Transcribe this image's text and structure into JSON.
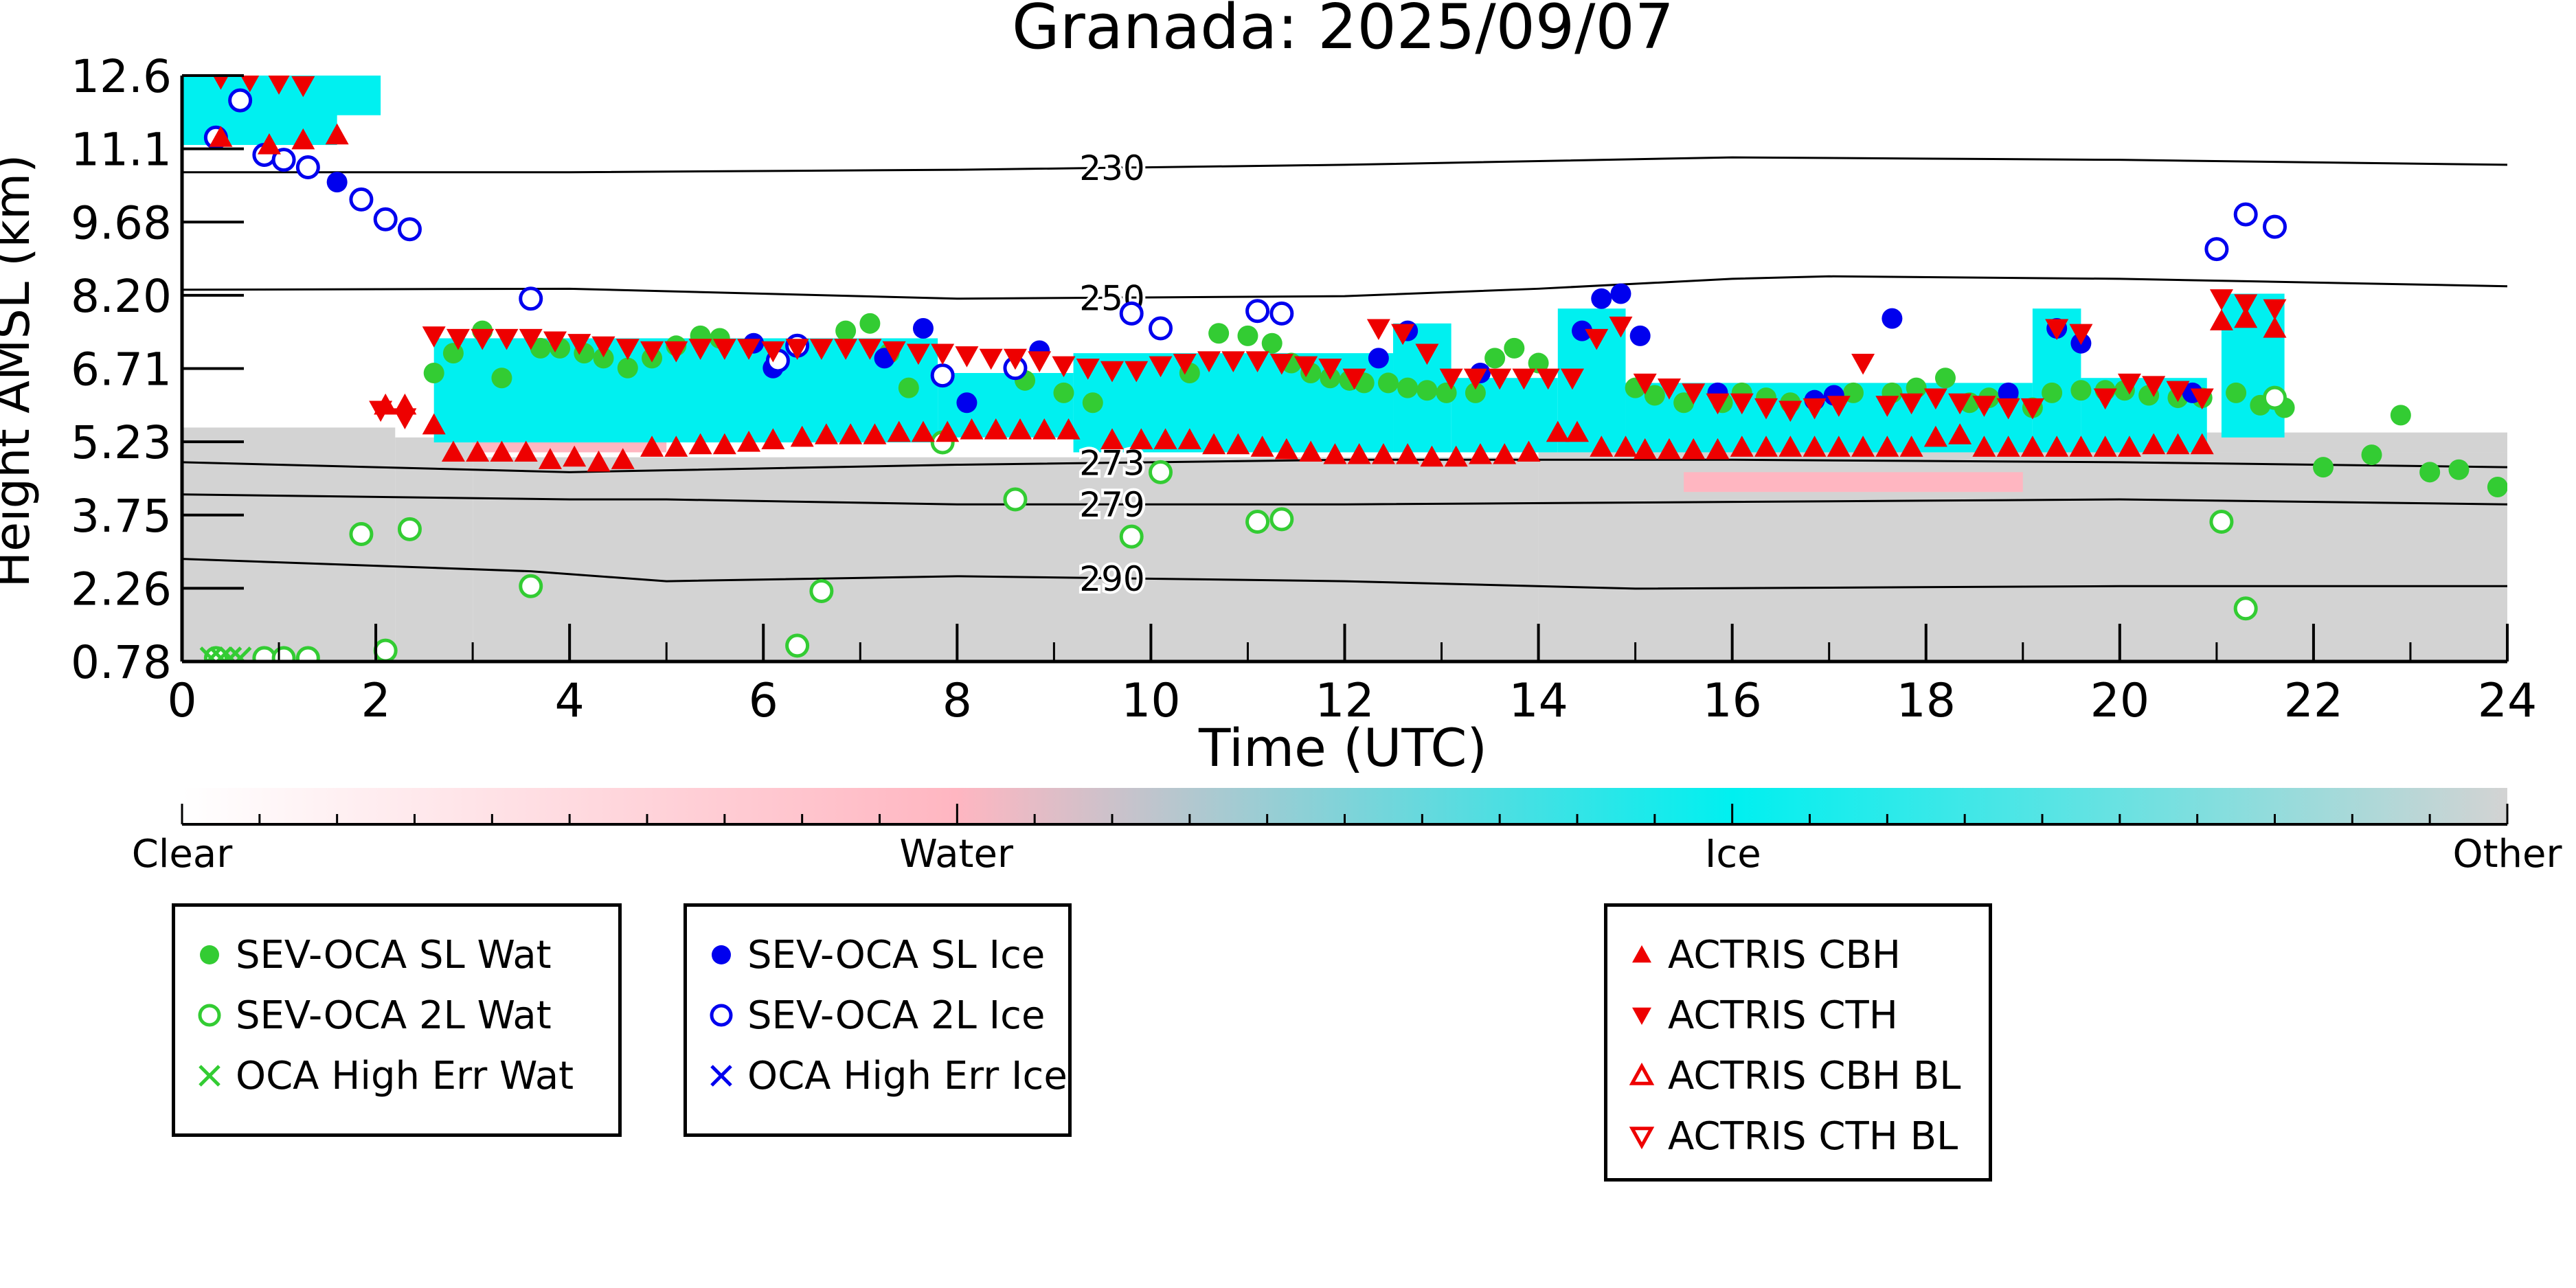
{
  "chart_data": {
    "type": "scatter",
    "title": "Granada: 2025/09/07",
    "xlabel": "Time (UTC)",
    "ylabel": "Height AMSL (km)",
    "xlim": [
      0,
      24
    ],
    "ylim": [
      0.78,
      12.6
    ],
    "xticks": [
      "0",
      "2",
      "4",
      "6",
      "8",
      "10",
      "12",
      "14",
      "16",
      "18",
      "20",
      "22",
      "24"
    ],
    "yticks": [
      "0.78",
      "2.26",
      "3.75",
      "5.23",
      "6.71",
      "8.20",
      "9.68",
      "11.1",
      "12.6"
    ],
    "isotherms": [
      {
        "label": "230",
        "x": [
          0,
          4,
          8,
          12,
          16,
          20,
          24
        ],
        "y": [
          10.65,
          10.65,
          10.7,
          10.8,
          10.95,
          10.9,
          10.8
        ]
      },
      {
        "label": "250",
        "x": [
          0,
          4,
          8,
          12,
          14,
          16,
          17,
          20,
          24
        ],
        "y": [
          8.28,
          8.3,
          8.1,
          8.15,
          8.3,
          8.5,
          8.55,
          8.5,
          8.35
        ]
      },
      {
        "label": "273",
        "x": [
          0,
          4,
          8,
          12,
          16,
          20,
          24
        ],
        "y": [
          4.8,
          4.6,
          4.75,
          4.85,
          4.85,
          4.8,
          4.7
        ]
      },
      {
        "label": "279",
        "x": [
          0,
          4,
          5,
          8,
          12,
          16,
          20,
          24
        ],
        "y": [
          4.15,
          4.05,
          4.05,
          3.95,
          3.95,
          4.0,
          4.05,
          3.95
        ]
      },
      {
        "label": "290",
        "x": [
          0,
          3.6,
          5,
          8,
          12,
          15,
          20,
          24
        ],
        "y": [
          2.85,
          2.6,
          2.4,
          2.5,
          2.4,
          2.25,
          2.3,
          2.3
        ]
      }
    ],
    "series": [
      {
        "name": "SEV-OCA SL Wat",
        "x": [
          2.6,
          2.8,
          3.1,
          3.3,
          3.7,
          3.9,
          4.15,
          4.35,
          4.6,
          4.85,
          5.1,
          5.35,
          5.55,
          6.85,
          7.1,
          7.3,
          7.5,
          8.7,
          9.1,
          9.4,
          10.4,
          10.7,
          11.0,
          11.25,
          11.45,
          11.65,
          11.85,
          12.05,
          12.2,
          12.45,
          12.65,
          12.85,
          13.05,
          13.35,
          13.55,
          13.75,
          14.0,
          15.0,
          15.2,
          15.5,
          15.9,
          16.1,
          16.35,
          16.6,
          17.25,
          17.65,
          17.9,
          18.2,
          18.45,
          18.65,
          18.85,
          19.1,
          19.3,
          19.6,
          19.85,
          20.05,
          20.3,
          20.6,
          20.85,
          21.2,
          21.45,
          21.7,
          22.1,
          22.6,
          22.9,
          23.2,
          23.5,
          23.9
        ],
        "y": [
          6.6,
          7.0,
          7.45,
          6.5,
          7.1,
          7.1,
          7.0,
          6.9,
          6.7,
          6.9,
          7.15,
          7.35,
          7.3,
          7.45,
          7.6,
          7.0,
          6.3,
          6.45,
          6.2,
          6.0,
          6.6,
          7.4,
          7.35,
          7.2,
          6.8,
          6.6,
          6.5,
          6.45,
          6.4,
          6.4,
          6.3,
          6.25,
          6.2,
          6.2,
          6.9,
          7.1,
          6.8,
          6.3,
          6.15,
          6.0,
          6.0,
          6.2,
          6.1,
          6.0,
          6.2,
          6.2,
          6.3,
          6.5,
          6.0,
          6.1,
          6.1,
          5.9,
          6.2,
          6.25,
          6.25,
          6.25,
          6.15,
          6.1,
          6.1,
          6.2,
          5.95,
          5.9,
          4.7,
          4.95,
          5.75,
          4.6,
          4.65,
          4.3
        ]
      },
      {
        "name": "SEV-OCA 2L Wat",
        "x": [
          0.35,
          0.85,
          1.05,
          1.3,
          1.85,
          2.1,
          2.35,
          3.6,
          6.35,
          6.6,
          7.85,
          8.6,
          9.8,
          10.1,
          11.1,
          11.35,
          21.05,
          21.3,
          21.6
        ],
        "y": [
          0.85,
          0.85,
          0.85,
          0.85,
          3.35,
          1.0,
          3.45,
          2.3,
          1.1,
          2.2,
          5.2,
          4.05,
          3.3,
          4.6,
          3.6,
          3.65,
          3.6,
          1.85,
          6.1
        ]
      },
      {
        "name": "OCA High Err Wat",
        "x": [
          0.3,
          0.4,
          0.5,
          0.6
        ],
        "y": [
          0.85,
          0.85,
          0.85,
          0.85
        ]
      },
      {
        "name": "SEV-OCA SL Ice",
        "x": [
          1.6,
          5.9,
          6.1,
          7.25,
          7.65,
          8.1,
          8.85,
          12.35,
          12.65,
          13.4,
          14.45,
          14.65,
          14.85,
          15.05,
          15.85,
          16.85,
          17.05,
          17.65,
          18.85,
          19.35,
          19.6,
          20.75
        ],
        "y": [
          10.45,
          7.2,
          6.7,
          6.9,
          7.5,
          6.0,
          7.05,
          6.9,
          7.45,
          6.6,
          7.45,
          8.1,
          8.2,
          7.35,
          6.2,
          6.05,
          6.15,
          7.7,
          6.2,
          7.5,
          7.2,
          6.2
        ]
      },
      {
        "name": "SEV-OCA 2L Ice",
        "x": [
          0.35,
          0.6,
          0.85,
          1.05,
          1.3,
          1.85,
          2.1,
          2.35,
          3.6,
          6.15,
          6.35,
          7.85,
          8.6,
          9.8,
          10.1,
          11.1,
          11.35,
          21.0,
          21.3,
          21.6
        ],
        "y": [
          11.35,
          12.1,
          11.0,
          10.9,
          10.75,
          10.1,
          9.7,
          9.5,
          8.1,
          6.85,
          7.15,
          6.55,
          6.7,
          7.8,
          7.5,
          7.85,
          7.8,
          9.1,
          9.8,
          9.55
        ]
      },
      {
        "name": "OCA High Err Ice",
        "x": [],
        "y": []
      },
      {
        "name": "ACTRIS CBH",
        "x": [
          0.4,
          0.9,
          1.25,
          1.6,
          2.1,
          2.3,
          2.6,
          2.8,
          3.05,
          3.3,
          3.55,
          3.8,
          4.05,
          4.3,
          4.55,
          4.85,
          5.1,
          5.35,
          5.6,
          5.85,
          6.1,
          6.4,
          6.65,
          6.9,
          7.15,
          7.4,
          7.65,
          7.9,
          8.15,
          8.4,
          8.65,
          8.9,
          9.15,
          9.6,
          9.9,
          10.15,
          10.4,
          10.65,
          10.9,
          11.15,
          11.4,
          11.65,
          11.9,
          12.15,
          12.4,
          12.65,
          12.9,
          13.15,
          13.4,
          13.65,
          13.9,
          14.2,
          14.4,
          14.65,
          14.9,
          15.1,
          15.35,
          15.6,
          15.85,
          16.1,
          16.35,
          16.6,
          16.85,
          17.1,
          17.35,
          17.6,
          17.85,
          18.1,
          18.35,
          18.6,
          18.85,
          19.1,
          19.35,
          19.6,
          19.85,
          20.1,
          20.35,
          20.6,
          20.85,
          21.05,
          21.3,
          21.6
        ],
        "y": [
          11.35,
          11.2,
          11.3,
          11.4,
          5.95,
          5.95,
          5.55,
          5.0,
          5.0,
          5.0,
          5.0,
          4.85,
          4.9,
          4.8,
          4.85,
          5.1,
          5.1,
          5.15,
          5.15,
          5.2,
          5.25,
          5.3,
          5.35,
          5.35,
          5.35,
          5.4,
          5.4,
          5.4,
          5.45,
          5.45,
          5.45,
          5.45,
          5.45,
          5.25,
          5.25,
          5.25,
          5.25,
          5.15,
          5.15,
          5.1,
          5.05,
          5.0,
          4.95,
          4.95,
          4.95,
          4.95,
          4.9,
          4.9,
          4.95,
          4.95,
          5.0,
          5.4,
          5.4,
          5.1,
          5.1,
          5.05,
          5.05,
          5.05,
          5.05,
          5.1,
          5.1,
          5.1,
          5.1,
          5.1,
          5.1,
          5.1,
          5.1,
          5.3,
          5.35,
          5.1,
          5.1,
          5.1,
          5.1,
          5.1,
          5.1,
          5.1,
          5.15,
          5.15,
          5.15,
          7.65,
          7.7,
          7.5
        ]
      },
      {
        "name": "ACTRIS CTH",
        "x": [
          0.4,
          0.7,
          1.0,
          1.25,
          2.05,
          2.3,
          2.6,
          2.85,
          3.1,
          3.35,
          3.6,
          3.85,
          4.1,
          4.35,
          4.6,
          4.85,
          5.1,
          5.35,
          5.6,
          5.85,
          6.1,
          6.35,
          6.6,
          6.85,
          7.1,
          7.35,
          7.6,
          7.85,
          8.1,
          8.35,
          8.6,
          8.85,
          9.1,
          9.35,
          9.6,
          9.85,
          10.1,
          10.35,
          10.6,
          10.85,
          11.1,
          11.35,
          11.6,
          11.85,
          12.1,
          12.35,
          12.6,
          12.85,
          13.1,
          13.35,
          13.6,
          13.85,
          14.1,
          14.35,
          14.6,
          14.85,
          15.1,
          15.35,
          15.6,
          15.85,
          16.1,
          16.35,
          16.6,
          16.85,
          17.1,
          17.35,
          17.6,
          17.85,
          18.1,
          18.35,
          18.6,
          18.85,
          19.1,
          19.35,
          19.6,
          19.85,
          20.1,
          20.35,
          20.6,
          20.85,
          21.05,
          21.3,
          21.6
        ],
        "y": [
          12.55,
          12.5,
          12.45,
          12.4,
          5.85,
          5.7,
          7.35,
          7.3,
          7.3,
          7.3,
          7.3,
          7.25,
          7.2,
          7.15,
          7.1,
          7.05,
          7.05,
          7.1,
          7.1,
          7.1,
          7.05,
          7.1,
          7.1,
          7.1,
          7.1,
          7.05,
          7.0,
          7.0,
          6.95,
          6.9,
          6.9,
          6.85,
          6.75,
          6.7,
          6.65,
          6.65,
          6.75,
          6.8,
          6.85,
          6.85,
          6.85,
          6.8,
          6.75,
          6.7,
          6.5,
          7.5,
          7.4,
          7.0,
          6.5,
          6.5,
          6.5,
          6.5,
          6.5,
          6.5,
          7.3,
          7.55,
          6.4,
          6.3,
          6.2,
          6.0,
          6.0,
          5.9,
          5.85,
          5.9,
          5.95,
          6.8,
          5.95,
          6.0,
          6.1,
          6.0,
          5.95,
          5.9,
          5.9,
          7.5,
          7.4,
          6.1,
          6.4,
          6.35,
          6.25,
          6.1,
          8.1,
          8.0,
          7.9
        ]
      },
      {
        "name": "ACTRIS CBH BL",
        "x": [],
        "y": []
      },
      {
        "name": "ACTRIS CTH BL",
        "x": [],
        "y": []
      }
    ],
    "colorbar": {
      "labels": [
        "Clear",
        "Water",
        "Ice",
        "Other"
      ],
      "positions": [
        0,
        0.333,
        0.667,
        1
      ]
    },
    "legend_placement": "bottom"
  },
  "colors": {
    "water": "#33cc33",
    "ice": "#0000ee",
    "actris": "#ee0000",
    "ice_cloud": "#00f0f0",
    "water_cloud": "#ffb6c1",
    "other": "#d3d3d3",
    "isotherm": "#000000"
  },
  "legends": [
    {
      "entries": [
        {
          "label": "SEV-OCA SL Wat",
          "marker": "filled-circle",
          "color": "#33cc33"
        },
        {
          "label": "SEV-OCA 2L Wat",
          "marker": "open-circle",
          "color": "#33cc33"
        },
        {
          "label": "OCA High Err Wat",
          "marker": "cross",
          "color": "#33cc33"
        }
      ]
    },
    {
      "entries": [
        {
          "label": "SEV-OCA SL Ice",
          "marker": "filled-circle",
          "color": "#0000ee"
        },
        {
          "label": "SEV-OCA 2L Ice",
          "marker": "open-circle",
          "color": "#0000ee"
        },
        {
          "label": "OCA High Err Ice",
          "marker": "cross",
          "color": "#0000ee"
        }
      ]
    },
    {
      "entries": [
        {
          "label": "ACTRIS CBH",
          "marker": "triangle-up",
          "color": "#ee0000"
        },
        {
          "label": "ACTRIS CTH",
          "marker": "triangle-down",
          "color": "#ee0000"
        },
        {
          "label": "ACTRIS CBH BL",
          "marker": "open-triangle-up",
          "color": "#ee0000"
        },
        {
          "label": "ACTRIS CTH BL",
          "marker": "open-triangle-down",
          "color": "#ee0000"
        }
      ]
    }
  ]
}
